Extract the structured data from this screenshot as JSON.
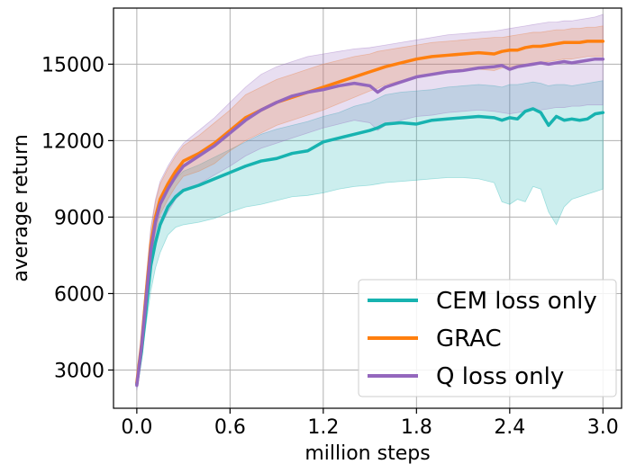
{
  "chart_data": {
    "type": "line",
    "title": "",
    "xlabel": "million steps",
    "ylabel": "average return",
    "xlim": [
      -0.15,
      3.12
    ],
    "ylim": [
      1500,
      17200
    ],
    "xticks": [
      0.0,
      0.6,
      1.2,
      1.8,
      2.4,
      3.0
    ],
    "xtick_labels": [
      "0.0",
      "0.6",
      "1.2",
      "1.8",
      "2.4",
      "3.0"
    ],
    "yticks": [
      3000,
      6000,
      9000,
      12000,
      15000
    ],
    "ytick_labels": [
      "3000",
      "6000",
      "9000",
      "12000",
      "15000"
    ],
    "grid": true,
    "legend_position": "bottom-right",
    "x": [
      0.0,
      0.03,
      0.06,
      0.09,
      0.12,
      0.15,
      0.2,
      0.25,
      0.3,
      0.4,
      0.5,
      0.6,
      0.7,
      0.8,
      0.9,
      1.0,
      1.1,
      1.2,
      1.3,
      1.4,
      1.5,
      1.55,
      1.6,
      1.7,
      1.8,
      1.9,
      2.0,
      2.1,
      2.2,
      2.3,
      2.35,
      2.4,
      2.45,
      2.5,
      2.55,
      2.6,
      2.65,
      2.7,
      2.75,
      2.8,
      2.85,
      2.9,
      2.95,
      3.0
    ],
    "series": [
      {
        "name": "CEM loss only",
        "color": "#17b3b0",
        "values": [
          2450,
          3700,
          5400,
          7100,
          8000,
          8700,
          9400,
          9800,
          10050,
          10250,
          10500,
          10750,
          11000,
          11200,
          11300,
          11500,
          11600,
          11950,
          12100,
          12250,
          12400,
          12500,
          12650,
          12700,
          12650,
          12800,
          12850,
          12900,
          12950,
          12900,
          12800,
          12900,
          12850,
          13150,
          13250,
          13100,
          12600,
          12950,
          12800,
          12850,
          12800,
          12850,
          13050,
          13100
        ],
        "band_upper": [
          2600,
          4000,
          6000,
          7900,
          8900,
          9500,
          10100,
          10500,
          10800,
          11050,
          11350,
          11650,
          11950,
          12250,
          12450,
          12600,
          12750,
          12950,
          13100,
          13350,
          13500,
          13650,
          13800,
          13900,
          13950,
          14000,
          14100,
          14150,
          14200,
          14150,
          14100,
          14200,
          14200,
          14250,
          14300,
          14250,
          14150,
          14200,
          14200,
          14150,
          14200,
          14250,
          14300,
          14350
        ],
        "band_lower": [
          2300,
          3400,
          4800,
          6100,
          7000,
          7600,
          8300,
          8600,
          8700,
          8800,
          8950,
          9200,
          9400,
          9500,
          9650,
          9800,
          9850,
          9950,
          10100,
          10200,
          10250,
          10300,
          10350,
          10400,
          10450,
          10500,
          10550,
          10550,
          10500,
          10350,
          9600,
          9500,
          9700,
          9600,
          10200,
          10100,
          9200,
          8700,
          9400,
          9700,
          9800,
          9900,
          10000,
          10100
        ]
      },
      {
        "name": "GRAC",
        "color": "#ff7f0e",
        "values": [
          2500,
          4000,
          6000,
          7900,
          9000,
          9700,
          10300,
          10800,
          11200,
          11500,
          11900,
          12400,
          12900,
          13200,
          13500,
          13700,
          13900,
          14100,
          14300,
          14500,
          14700,
          14800,
          14900,
          15050,
          15200,
          15300,
          15350,
          15400,
          15450,
          15400,
          15500,
          15550,
          15550,
          15650,
          15700,
          15700,
          15750,
          15800,
          15850,
          15850,
          15850,
          15900,
          15900,
          15900
        ],
        "band_upper": [
          2650,
          4300,
          6500,
          8500,
          9600,
          10300,
          10900,
          11400,
          11800,
          12200,
          12700,
          13200,
          13800,
          14100,
          14400,
          14600,
          14800,
          15000,
          15150,
          15300,
          15400,
          15500,
          15550,
          15650,
          15750,
          15850,
          15900,
          15950,
          16000,
          16050,
          16050,
          16100,
          16150,
          16200,
          16250,
          16250,
          16300,
          16350,
          16350,
          16400,
          16400,
          16450,
          16450,
          16500
        ],
        "band_lower": [
          2350,
          3700,
          5500,
          7300,
          8400,
          9100,
          9700,
          10200,
          10600,
          10800,
          11100,
          11600,
          12000,
          12300,
          12600,
          12800,
          13000,
          13200,
          13450,
          13700,
          13950,
          14050,
          14200,
          14350,
          14500,
          14600,
          14700,
          14750,
          14800,
          14750,
          14850,
          14900,
          14950,
          15000,
          15050,
          15050,
          15100,
          15150,
          15200,
          15200,
          15250,
          15300,
          15300,
          15300
        ]
      },
      {
        "name": "Q loss only",
        "color": "#9467bd",
        "values": [
          2400,
          3900,
          5800,
          7700,
          8800,
          9500,
          10100,
          10600,
          11000,
          11400,
          11800,
          12300,
          12800,
          13200,
          13500,
          13750,
          13900,
          14000,
          14150,
          14250,
          14150,
          13900,
          14100,
          14300,
          14500,
          14600,
          14700,
          14750,
          14850,
          14900,
          14950,
          14800,
          14900,
          14950,
          15000,
          15050,
          15000,
          15050,
          15100,
          15050,
          15100,
          15150,
          15200,
          15200
        ],
        "band_upper": [
          2600,
          4400,
          6600,
          8600,
          9700,
          10400,
          11000,
          11500,
          11900,
          12400,
          12900,
          13500,
          14100,
          14600,
          14900,
          15100,
          15300,
          15400,
          15500,
          15600,
          15650,
          15700,
          15750,
          15850,
          15950,
          16050,
          16150,
          16200,
          16250,
          16300,
          16350,
          16400,
          16450,
          16500,
          16550,
          16600,
          16650,
          16650,
          16700,
          16700,
          16750,
          16800,
          16850,
          16950
        ],
        "band_lower": [
          2200,
          3400,
          5000,
          6800,
          7900,
          8600,
          9200,
          9700,
          10000,
          10300,
          10650,
          11000,
          11400,
          11700,
          11900,
          12100,
          12300,
          12500,
          12650,
          12800,
          12700,
          12400,
          12600,
          12800,
          12950,
          13000,
          13100,
          13150,
          13200,
          13150,
          13100,
          13050,
          13100,
          13150,
          13200,
          13200,
          13250,
          13300,
          13300,
          13350,
          13350,
          13400,
          13400,
          13400
        ]
      }
    ]
  }
}
